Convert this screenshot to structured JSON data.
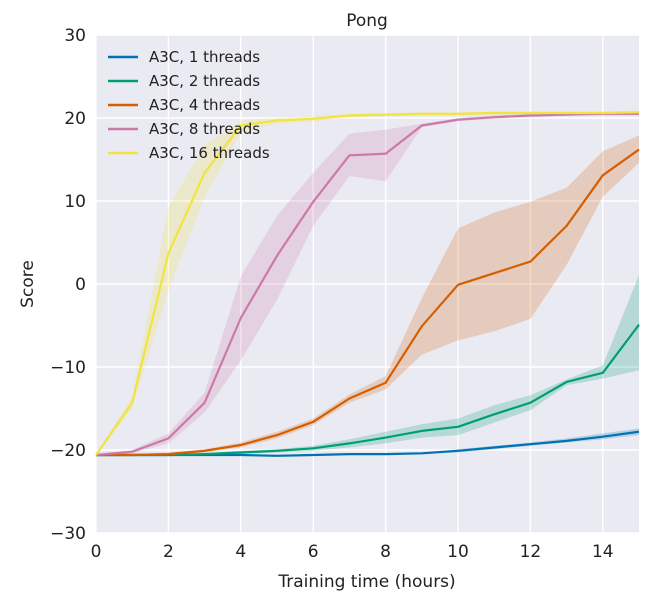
{
  "chart_data": {
    "type": "line",
    "title": "Pong",
    "xlabel": "Training time (hours)",
    "ylabel": "Score",
    "xlim": [
      0,
      15
    ],
    "ylim": [
      -30,
      30
    ],
    "xticks": [
      0,
      2,
      4,
      6,
      8,
      10,
      12,
      14
    ],
    "yticks": [
      -30,
      -20,
      -10,
      0,
      10,
      20,
      30
    ],
    "xtick_labels": [
      "0",
      "2",
      "4",
      "6",
      "8",
      "10",
      "12",
      "14"
    ],
    "ytick_labels": [
      "−30",
      "−20",
      "−10",
      "0",
      "10",
      "20",
      "30"
    ],
    "grid": true,
    "background": "#eaeaf2",
    "legend_position": "top-left",
    "series": [
      {
        "name": "A3C, 1 threads",
        "color": "#0072b2",
        "x": [
          0,
          1,
          2,
          3,
          4,
          5,
          6,
          7,
          8,
          9,
          10,
          11,
          12,
          13,
          14,
          15
        ],
        "y": [
          -20.6,
          -20.6,
          -20.6,
          -20.6,
          -20.6,
          -20.7,
          -20.6,
          -20.5,
          -20.5,
          -20.4,
          -20.1,
          -19.7,
          -19.3,
          -18.9,
          -18.4,
          -17.8
        ],
        "lower": [
          -20.7,
          -20.7,
          -20.7,
          -20.7,
          -20.7,
          -20.8,
          -20.7,
          -20.6,
          -20.6,
          -20.5,
          -20.3,
          -19.9,
          -19.5,
          -19.1,
          -18.7,
          -18.2
        ],
        "upper": [
          -20.5,
          -20.5,
          -20.5,
          -20.5,
          -20.5,
          -20.6,
          -20.5,
          -20.4,
          -20.4,
          -20.3,
          -19.9,
          -19.5,
          -19.1,
          -18.6,
          -18.0,
          -17.4
        ]
      },
      {
        "name": "A3C, 2 threads",
        "color": "#009e73",
        "x": [
          0,
          1,
          2,
          3,
          4,
          5,
          6,
          7,
          8,
          9,
          10,
          11,
          12,
          13,
          14,
          15
        ],
        "y": [
          -20.6,
          -20.6,
          -20.6,
          -20.5,
          -20.3,
          -20.1,
          -19.8,
          -19.2,
          -18.5,
          -17.7,
          -17.2,
          -15.7,
          -14.3,
          -11.8,
          -10.7,
          -4.9
        ],
        "lower": [
          -20.7,
          -20.7,
          -20.7,
          -20.6,
          -20.5,
          -20.3,
          -20.1,
          -19.7,
          -19.2,
          -18.5,
          -18.2,
          -16.7,
          -15.2,
          -12.2,
          -11.4,
          -10.4
        ],
        "upper": [
          -20.5,
          -20.5,
          -20.5,
          -20.4,
          -20.1,
          -19.9,
          -19.5,
          -18.7,
          -17.8,
          -16.9,
          -16.2,
          -14.6,
          -13.4,
          -11.5,
          -9.8,
          1.1
        ]
      },
      {
        "name": "A3C, 4 threads",
        "color": "#d55e00",
        "x": [
          0,
          1,
          2,
          3,
          4,
          5,
          6,
          7,
          8,
          9,
          10,
          11,
          12,
          13,
          14,
          15
        ],
        "y": [
          -20.6,
          -20.6,
          -20.5,
          -20.1,
          -19.4,
          -18.2,
          -16.6,
          -13.8,
          -11.9,
          -5.1,
          -0.1,
          1.3,
          2.7,
          7.0,
          13.1,
          16.2
        ],
        "lower": [
          -20.7,
          -20.7,
          -20.7,
          -20.3,
          -19.7,
          -18.6,
          -17.0,
          -14.3,
          -12.7,
          -8.5,
          -6.8,
          -5.7,
          -4.2,
          2.3,
          10.5,
          14.6
        ],
        "upper": [
          -20.5,
          -20.5,
          -20.3,
          -19.9,
          -19.1,
          -17.8,
          -16.2,
          -13.3,
          -11.1,
          -1.7,
          6.7,
          8.6,
          9.9,
          11.6,
          16.0,
          17.9
        ]
      },
      {
        "name": "A3C, 8 threads",
        "color": "#cc79a7",
        "x": [
          0,
          1,
          2,
          3,
          4,
          5,
          6,
          7,
          8,
          9,
          10,
          11,
          12,
          13,
          14,
          15
        ],
        "y": [
          -20.6,
          -20.2,
          -18.6,
          -14.3,
          -4.1,
          3.4,
          9.9,
          15.5,
          15.7,
          19.1,
          19.8,
          20.1,
          20.3,
          20.4,
          20.5,
          20.5
        ],
        "lower": [
          -20.7,
          -20.4,
          -19.2,
          -15.5,
          -9.2,
          -1.9,
          7.0,
          13.0,
          12.4,
          18.9,
          19.6,
          19.9,
          20.1,
          20.3,
          20.3,
          20.3
        ],
        "upper": [
          -20.5,
          -20.0,
          -18.0,
          -13.1,
          0.9,
          8.2,
          13.4,
          18.1,
          18.6,
          19.3,
          20.0,
          20.3,
          20.5,
          20.5,
          20.7,
          20.7
        ]
      },
      {
        "name": "A3C, 16 threads",
        "color": "#f0e442",
        "x": [
          0,
          1,
          2,
          3,
          4,
          5,
          6,
          7,
          8,
          9,
          10,
          11,
          12,
          13,
          14,
          15
        ],
        "y": [
          -20.6,
          -14.3,
          3.7,
          13.4,
          19.1,
          19.7,
          19.9,
          20.3,
          20.4,
          20.5,
          20.5,
          20.6,
          20.6,
          20.6,
          20.6,
          20.7
        ],
        "lower": [
          -20.7,
          -15.0,
          -0.8,
          10.5,
          18.2,
          19.3,
          19.6,
          20.1,
          20.2,
          20.3,
          20.3,
          20.4,
          20.4,
          20.4,
          20.4,
          20.5
        ],
        "upper": [
          -20.5,
          -13.6,
          9.3,
          16.7,
          19.7,
          20.0,
          20.2,
          20.5,
          20.6,
          20.7,
          20.7,
          20.8,
          20.8,
          20.8,
          20.8,
          20.9
        ]
      }
    ]
  }
}
